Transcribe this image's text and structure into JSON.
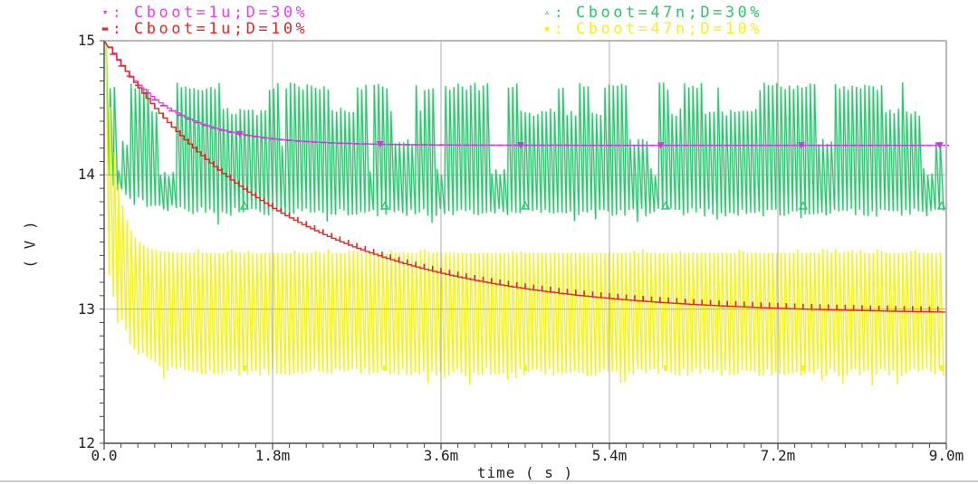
{
  "window": {
    "background": "#ffffff",
    "bottom_edge_color": "#cccccc"
  },
  "legend": {
    "colon": ":"
  },
  "colors": {
    "grid": "#9a9a9a",
    "axis": "#4a4a4a",
    "border": "#b8b8b8",
    "text": "#232323"
  },
  "chart_data": {
    "type": "line",
    "title": "",
    "xlabel": "time ( s )",
    "ylabel": "( V )",
    "xlim_ms": [
      0,
      9.0
    ],
    "ylim": [
      12,
      15
    ],
    "grid": true,
    "legend_position": "top",
    "x_ticks": [
      {
        "value_ms": 0.0,
        "label": "0.0"
      },
      {
        "value_ms": 1.8,
        "label": "1.8m"
      },
      {
        "value_ms": 3.6,
        "label": "3.6m"
      },
      {
        "value_ms": 5.4,
        "label": "5.4m"
      },
      {
        "value_ms": 7.2,
        "label": "7.2m"
      },
      {
        "value_ms": 9.0,
        "label": "9.0m"
      }
    ],
    "y_ticks": [
      {
        "value": 15,
        "label": "15"
      },
      {
        "value": 14,
        "label": "14"
      },
      {
        "value": 13,
        "label": "13"
      },
      {
        "value": 12,
        "label": "12"
      }
    ],
    "x_minor_step_ms": 0.18,
    "y_minor_step_v": 0.1,
    "series": [
      {
        "name": "Cboot=1u;D=30%",
        "legend_marker": "▾",
        "color": "#ef3cef",
        "marker_color": "#c43cdd",
        "curve": "exponential-decay",
        "v_start": 15.0,
        "v_final": 14.22,
        "tau_ms": 0.65,
        "points_ms_v": [
          [
            0,
            15.0
          ],
          [
            0.45,
            14.62
          ],
          [
            0.9,
            14.42
          ],
          [
            1.35,
            14.31
          ],
          [
            1.8,
            14.27
          ],
          [
            2.7,
            14.23
          ],
          [
            3.6,
            14.22
          ],
          [
            5.4,
            14.22
          ],
          [
            7.2,
            14.22
          ],
          [
            9.0,
            14.22
          ]
        ],
        "marker_positions_ms": [
          1.45,
          2.95,
          4.45,
          5.95,
          7.45,
          8.93
        ]
      },
      {
        "name": "Cboot=1u;D=10%",
        "legend_marker": "▬",
        "color": "#e62525",
        "marker_color": "#e62525",
        "curve": "exponential-decay",
        "v_start": 15.0,
        "v_final": 12.96,
        "tau_ms": 1.9,
        "points_ms_v": [
          [
            0,
            15.0
          ],
          [
            0.9,
            14.27
          ],
          [
            1.8,
            13.76
          ],
          [
            2.7,
            13.45
          ],
          [
            3.6,
            13.26
          ],
          [
            4.5,
            13.15
          ],
          [
            5.4,
            13.08
          ],
          [
            6.3,
            13.03
          ],
          [
            7.2,
            13.0
          ],
          [
            8.1,
            12.98
          ],
          [
            9.0,
            12.97
          ]
        ],
        "marker_positions_ms": []
      },
      {
        "name": "Cboot=47n;D=30%",
        "legend_marker": "▵",
        "color": "#2cc46e",
        "marker_color": "#2cc46e",
        "curve": "switching-ripple",
        "v_start": 15.0,
        "ripple_top_v": 14.66,
        "ripple_bottom_v": 13.72,
        "top_levels": [
          14.66,
          14.47,
          14.24,
          14.02
        ],
        "top_weights": [
          0.5,
          0.2,
          0.17,
          0.13
        ],
        "bottom_start_v": 13.98,
        "bottom_tau_ms": 0.3,
        "top_tau_ms": 0,
        "cycles": 200,
        "marker_positions_ms": [
          1.5,
          3.0,
          4.5,
          6.0,
          7.47,
          8.95
        ]
      },
      {
        "name": "Cboot=47n;D=10%",
        "legend_marker": "▪",
        "color": "#f2f21e",
        "marker_color": "#f2f21e",
        "curve": "switching-ripple",
        "v_start": 15.0,
        "ripple_top_v": 13.42,
        "ripple_bottom_v": 12.53,
        "top_levels": [
          13.42,
          13.18,
          12.96
        ],
        "top_weights": [
          0.6,
          0.2,
          0.2
        ],
        "bottom_start_v": 13.25,
        "bottom_tau_ms": 0.2,
        "top_tau_ms": 0.12,
        "cycles": 200,
        "marker_positions_ms": [
          1.5,
          3.0,
          4.5,
          6.0,
          7.47,
          8.95
        ]
      }
    ]
  }
}
